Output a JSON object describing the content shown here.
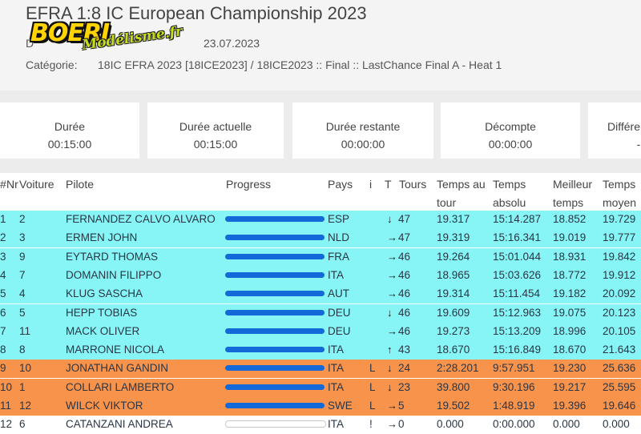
{
  "header": {
    "title": "EFRA 1:8 IC European Championship 2023",
    "date_label": "D",
    "date_value": "23.07.2023",
    "category_label": "Catégorie:",
    "category_value": "18IC EFRA 2023 [18ICE2023] / 18ICE2023 :: Final :: LastChance Final A - Heat 1"
  },
  "logo": {
    "brand": "BOERI",
    "site": "Modélisme.fr"
  },
  "cards": [
    {
      "label": "Durée",
      "value": "00:15:00"
    },
    {
      "label": "Durée actuelle",
      "value": "00:15:00"
    },
    {
      "label": "Durée restante",
      "value": "00:00:00"
    },
    {
      "label": "Décompte",
      "value": "00:00:00"
    },
    {
      "label": "Différen",
      "value": "-"
    }
  ],
  "columns": {
    "pos": "#",
    "nr": "Nr",
    "voiture": "Voiture",
    "pilote": "Pilote",
    "progress": "Progress",
    "pays": "Pays",
    "i": "i",
    "t": "T",
    "tours": "Tours",
    "temps_tour_1": "Temps au",
    "temps_tour_2": "tour",
    "temps_abs_1": "Temps",
    "temps_abs_2": "absolu",
    "meilleur_1": "Meilleur",
    "meilleur_2": "temps",
    "moyen_1": "Temps",
    "moyen_2": "moyen"
  },
  "rows": [
    {
      "pos": "1",
      "voiture": "2",
      "pilote": "FERNANDEZ CALVO ALVARO",
      "progress": 1.0,
      "pays": "ESP",
      "i": "",
      "trend": "down",
      "tours": "47",
      "tour": "19.317",
      "absolu": "15:14.287",
      "meilleur": "18.852",
      "moyen": "19.729",
      "color": "cyan"
    },
    {
      "pos": "2",
      "voiture": "3",
      "pilote": "ERMEN JOHN",
      "progress": 1.0,
      "pays": "NLD",
      "i": "",
      "trend": "right",
      "tours": "47",
      "tour": "19.319",
      "absolu": "15:16.341",
      "meilleur": "19.019",
      "moyen": "19.777",
      "color": "cyan"
    },
    {
      "pos": "3",
      "voiture": "9",
      "pilote": "EYTARD THOMAS",
      "progress": 1.0,
      "pays": "FRA",
      "i": "",
      "trend": "right",
      "tours": "46",
      "tour": "19.264",
      "absolu": "15:01.044",
      "meilleur": "18.931",
      "moyen": "19.842",
      "color": "cyan"
    },
    {
      "pos": "4",
      "voiture": "7",
      "pilote": "DOMANIN FILIPPO",
      "progress": 1.0,
      "pays": "ITA",
      "i": "",
      "trend": "right",
      "tours": "46",
      "tour": "18.965",
      "absolu": "15:03.626",
      "meilleur": "18.772",
      "moyen": "19.912",
      "color": "cyan"
    },
    {
      "pos": "5",
      "voiture": "4",
      "pilote": "KLUG SASCHA",
      "progress": 1.0,
      "pays": "AUT",
      "i": "",
      "trend": "right",
      "tours": "46",
      "tour": "19.314",
      "absolu": "15:11.454",
      "meilleur": "19.182",
      "moyen": "20.092",
      "color": "cyan"
    },
    {
      "pos": "6",
      "voiture": "5",
      "pilote": "HEPP TOBIAS",
      "progress": 1.0,
      "pays": "DEU",
      "i": "",
      "trend": "down",
      "tours": "46",
      "tour": "19.609",
      "absolu": "15:12.963",
      "meilleur": "19.075",
      "moyen": "20.123",
      "color": "cyan"
    },
    {
      "pos": "7",
      "voiture": "11",
      "pilote": "MACK OLIVER",
      "progress": 1.0,
      "pays": "DEU",
      "i": "",
      "trend": "right",
      "tours": "46",
      "tour": "19.273",
      "absolu": "15:13.209",
      "meilleur": "18.996",
      "moyen": "20.105",
      "color": "cyan"
    },
    {
      "pos": "8",
      "voiture": "8",
      "pilote": "MARRONE NICOLA",
      "progress": 1.0,
      "pays": "ITA",
      "i": "",
      "trend": "up",
      "tours": "43",
      "tour": "18.670",
      "absolu": "15:16.849",
      "meilleur": "18.670",
      "moyen": "21.643",
      "color": "cyan"
    },
    {
      "pos": "9",
      "voiture": "10",
      "pilote": "JONATHAN GANDIN",
      "progress": 1.0,
      "pays": "ITA",
      "i": "L",
      "trend": "down",
      "tours": "24",
      "tour": "2:28.201",
      "absolu": "9:57.951",
      "meilleur": "19.230",
      "moyen": "25.636",
      "color": "orange"
    },
    {
      "pos": "10",
      "voiture": "1",
      "pilote": "COLLARI LAMBERTO",
      "progress": 1.0,
      "pays": "ITA",
      "i": "L",
      "trend": "down",
      "tours": "23",
      "tour": "39.800",
      "absolu": "9:30.196",
      "meilleur": "19.217",
      "moyen": "25.595",
      "color": "orange"
    },
    {
      "pos": "11",
      "voiture": "12",
      "pilote": "WILCK VIKTOR",
      "progress": 1.0,
      "pays": "SWE",
      "i": "L",
      "trend": "right",
      "tours": "5",
      "tour": "19.502",
      "absolu": "1:48.919",
      "meilleur": "19.396",
      "moyen": "19.646",
      "color": "orange"
    },
    {
      "pos": "12",
      "voiture": "6",
      "pilote": "CATANZANI ANDREA",
      "progress": 0.0,
      "pays": "ITA",
      "i": "!",
      "trend": "right",
      "tours": "0",
      "tour": "0.000",
      "absolu": "0:00.000",
      "meilleur": "0.000",
      "moyen": "0.000",
      "color": "white"
    }
  ],
  "colors": {
    "cyan": "#87f5f5",
    "orange": "#f7934b",
    "bar": "#1469d8"
  }
}
